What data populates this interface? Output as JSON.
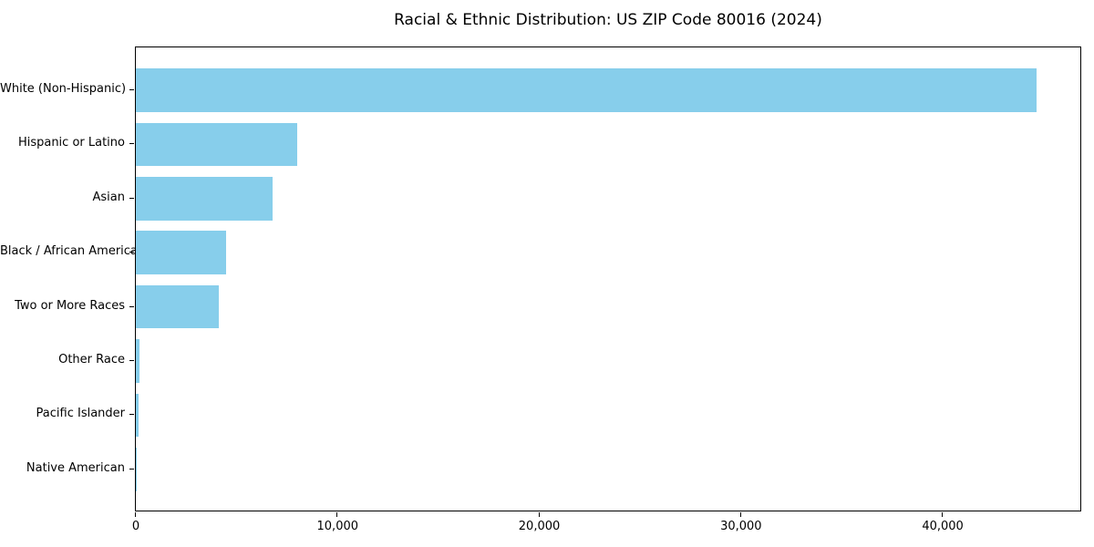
{
  "chart_data": {
    "type": "bar",
    "orientation": "horizontal",
    "title": "Racial & Ethnic Distribution: US ZIP Code 80016 (2024)",
    "xlabel": "",
    "ylabel": "",
    "categories": [
      "White (Non-Hispanic)",
      "Hispanic or Latino",
      "Asian",
      "Black / African American",
      "Two or More Races",
      "Other Race",
      "Pacific Islander",
      "Native American"
    ],
    "values": [
      44650,
      8000,
      6790,
      4480,
      4110,
      195,
      130,
      40
    ],
    "xlim": [
      0,
      46820
    ],
    "xticks": [
      {
        "value": 0,
        "label": "0"
      },
      {
        "value": 10000,
        "label": "10,000"
      },
      {
        "value": 20000,
        "label": "20,000"
      },
      {
        "value": 30000,
        "label": "30,000"
      },
      {
        "value": 40000,
        "label": "40,000"
      }
    ],
    "bar_color": "#87CEEB",
    "spine_color": "#000000",
    "grid": false,
    "legend": "none"
  }
}
